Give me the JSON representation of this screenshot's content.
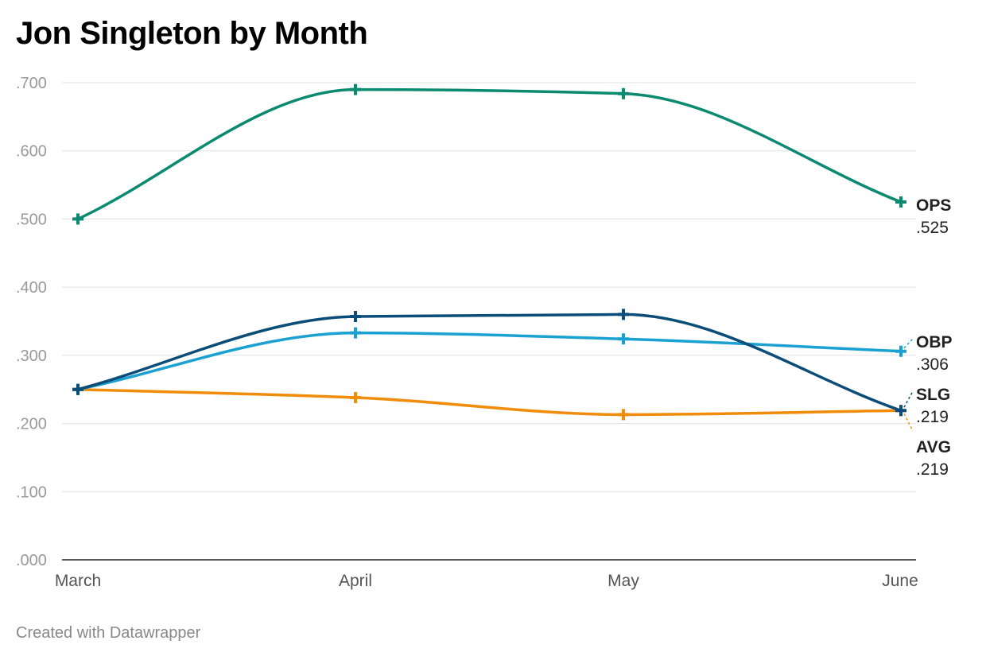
{
  "title": "Jon Singleton by Month",
  "footer": "Created with Datawrapper",
  "chart_data": {
    "type": "line",
    "title": "Jon Singleton by Month",
    "xlabel": "",
    "ylabel": "",
    "categories": [
      "March",
      "April",
      "May",
      "June"
    ],
    "ylim": [
      0,
      0.7
    ],
    "y_ticks": [
      ".000",
      ".100",
      ".200",
      ".300",
      ".400",
      ".500",
      ".600",
      ".700"
    ],
    "grid": true,
    "series": [
      {
        "name": "OPS",
        "values": [
          0.5,
          0.69,
          0.684,
          0.525
        ],
        "end_label": ".525",
        "color": "#0a8a6e"
      },
      {
        "name": "OBP",
        "values": [
          0.25,
          0.333,
          0.324,
          0.306
        ],
        "end_label": ".306",
        "color": "#1ba1d1"
      },
      {
        "name": "SLG",
        "values": [
          0.25,
          0.357,
          0.36,
          0.219
        ],
        "end_label": ".219",
        "color": "#0b4d79"
      },
      {
        "name": "AVG",
        "values": [
          0.25,
          0.238,
          0.213,
          0.219
        ],
        "end_label": ".219",
        "color": "#f08c0a"
      }
    ]
  }
}
